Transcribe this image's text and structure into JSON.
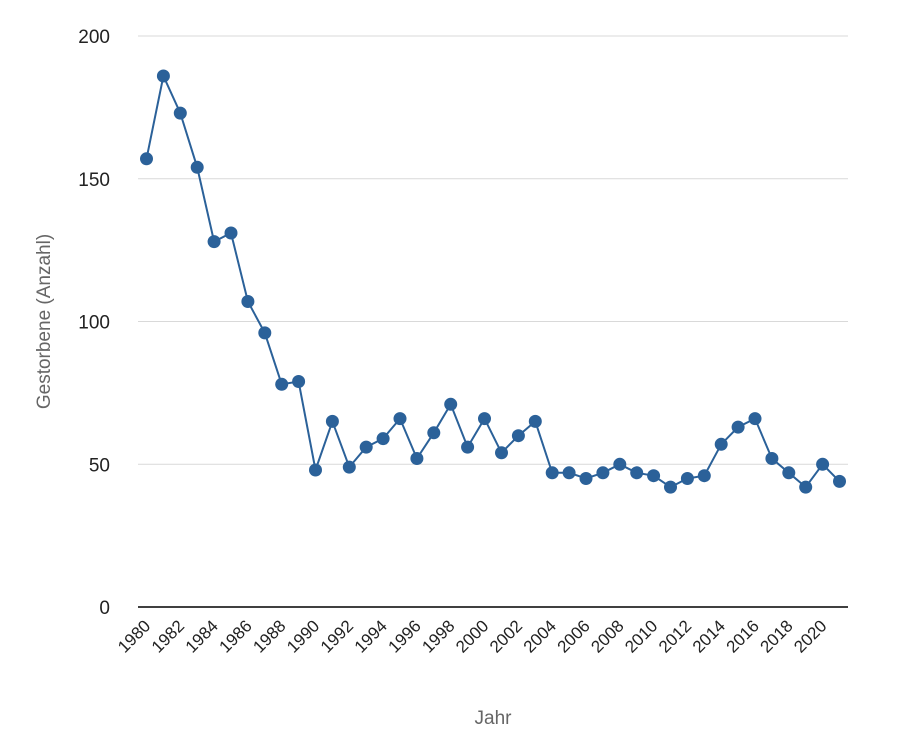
{
  "chart_data": {
    "type": "line",
    "xlabel": "Jahr",
    "ylabel": "Gestorbene (Anzahl)",
    "ylim": [
      0,
      200
    ],
    "yticks": [
      0,
      50,
      100,
      150,
      200
    ],
    "xtick_labels": [
      "1980",
      "1982",
      "1984",
      "1986",
      "1988",
      "1990",
      "1992",
      "1994",
      "1996",
      "1998",
      "2000",
      "2002",
      "2004",
      "2006",
      "2008",
      "2010",
      "2012",
      "2014",
      "2016",
      "2018",
      "2020"
    ],
    "grid": true,
    "colors": {
      "series": "#2b6199",
      "grid": "#d9d9d9",
      "axis": "#000000"
    },
    "series": [
      {
        "x": [
          1980,
          1981,
          1982,
          1983,
          1984,
          1985,
          1986,
          1987,
          1988,
          1989,
          1990,
          1991,
          1992,
          1993,
          1994,
          1995,
          1996,
          1997,
          1998,
          1999,
          2000,
          2001,
          2002,
          2003,
          2004,
          2005,
          2006,
          2007,
          2008,
          2009,
          2010,
          2011,
          2012,
          2013,
          2014,
          2015,
          2016,
          2017,
          2018,
          2019,
          2020,
          2021
        ],
        "values": [
          157,
          186,
          173,
          154,
          128,
          131,
          107,
          96,
          78,
          79,
          48,
          65,
          49,
          56,
          59,
          66,
          52,
          61,
          71,
          56,
          66,
          54,
          60,
          65,
          47,
          47,
          45,
          47,
          50,
          47,
          46,
          42,
          45,
          46,
          57,
          63,
          66,
          52,
          47,
          42,
          50,
          44
        ]
      }
    ]
  }
}
